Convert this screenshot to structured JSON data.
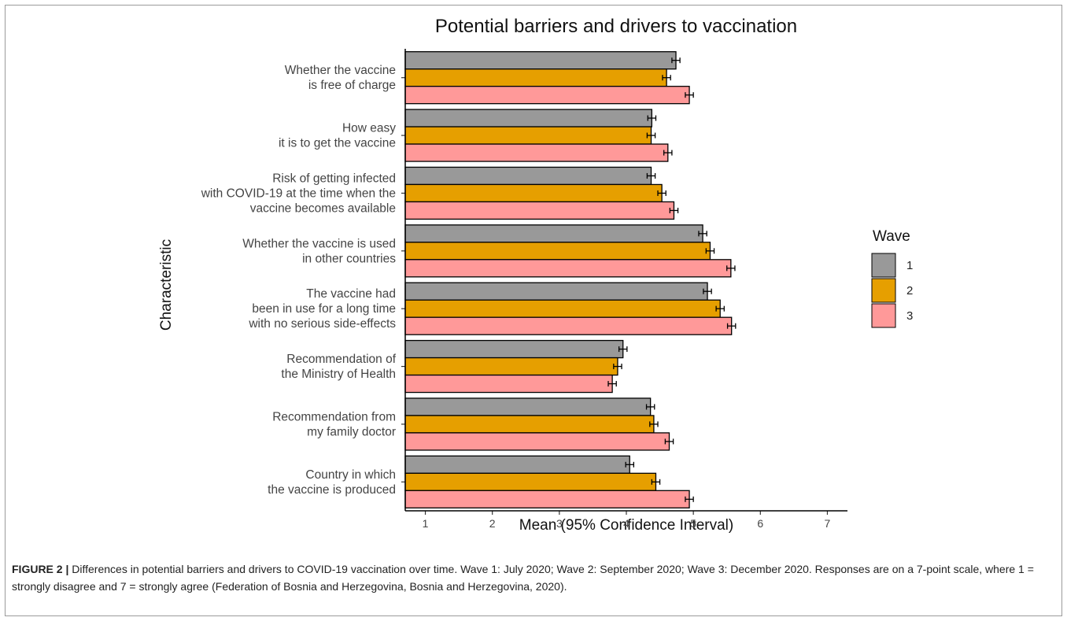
{
  "figure": {
    "caption_label": "FIGURE 2 |",
    "caption_text": " Differences in potential barriers and drivers to COVID-19 vaccination over time. Wave 1: July 2020; Wave 2: September 2020; Wave 3: December 2020. Responses are on a 7-point scale, where 1 = strongly disagree and 7 = strongly agree (Federation of Bosnia and Herzegovina, Bosnia and Herzegovina, 2020)."
  },
  "chart_data": {
    "type": "bar",
    "orientation": "horizontal",
    "title": "Potential barriers and drivers to vaccination",
    "xlabel": "Mean (95% Confidence Interval)",
    "ylabel": "Characteristic",
    "xlim": [
      0.7,
      7.3
    ],
    "xticks": [
      1,
      2,
      3,
      4,
      5,
      6,
      7
    ],
    "grid": false,
    "legend": {
      "title": "Wave",
      "position": "right"
    },
    "categories": [
      [
        "Whether the vaccine",
        "is free of charge"
      ],
      [
        "How easy",
        "it is  to get the vaccine"
      ],
      [
        "Risk of getting  infected",
        "with COVID-19 at the time when the",
        "vaccine becomes available"
      ],
      [
        "Whether the vaccine is used",
        "in other countries"
      ],
      [
        "The vaccine had",
        "been in use for a long  time",
        "with no serious side-effects"
      ],
      [
        "Recommendation of",
        "the Ministry of Health"
      ],
      [
        "Recommendation from",
        "my family doctor"
      ],
      [
        "Country in which",
        "the vaccine is produced"
      ]
    ],
    "series": [
      {
        "name": "1",
        "color": "#999999",
        "values": [
          4.74,
          4.38,
          4.37,
          5.14,
          5.21,
          3.95,
          4.36,
          4.05
        ],
        "ci": [
          0.06,
          0.06,
          0.06,
          0.06,
          0.06,
          0.06,
          0.06,
          0.06
        ]
      },
      {
        "name": "2",
        "color": "#E69F00",
        "values": [
          4.6,
          4.37,
          4.53,
          5.25,
          5.4,
          3.87,
          4.41,
          4.44
        ],
        "ci": [
          0.06,
          0.06,
          0.06,
          0.06,
          0.06,
          0.06,
          0.06,
          0.06
        ]
      },
      {
        "name": "3",
        "color": "#FF9999",
        "values": [
          4.94,
          4.62,
          4.71,
          5.56,
          5.57,
          3.79,
          4.64,
          4.94
        ],
        "ci": [
          0.06,
          0.06,
          0.06,
          0.06,
          0.06,
          0.06,
          0.06,
          0.06
        ]
      }
    ]
  }
}
